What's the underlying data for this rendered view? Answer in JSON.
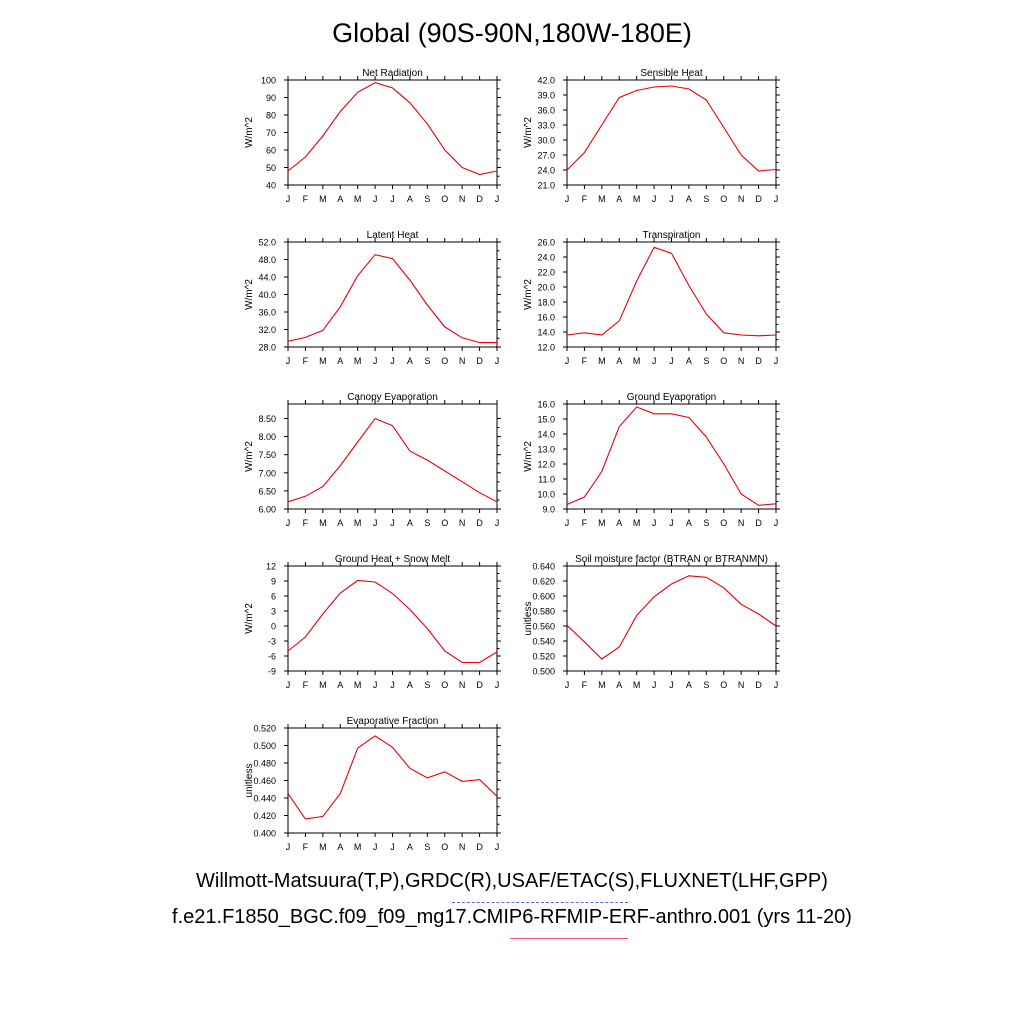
{
  "page": {
    "title": "Global (90S-90N,180W-180E)",
    "legend_line1": "Willmott-Matsuura(T,P),GRDC(R),USAF/ETAC(S),FLUXNET(LHF,GPP)",
    "legend_line2": "f.e21.F1850_BGC.f09_f09_mg17.CMIP6-RFMIP-ERF-anthro.001 (yrs 11-20)"
  },
  "colors": {
    "line": "#e8000b",
    "axis": "#000000"
  },
  "chart_data": [
    {
      "type": "line",
      "title": "Net Radiation",
      "ylabel": "W/m^2",
      "categories": [
        "J",
        "F",
        "M",
        "A",
        "M",
        "J",
        "J",
        "A",
        "S",
        "O",
        "N",
        "D",
        "J"
      ],
      "ylim": [
        40,
        100
      ],
      "yticks": [
        "40",
        "50",
        "60",
        "70",
        "80",
        "90",
        "100"
      ],
      "values": [
        48,
        56,
        68,
        82,
        93,
        98.5,
        95.5,
        87,
        75,
        60,
        50,
        46,
        48
      ]
    },
    {
      "type": "line",
      "title": "Sensible Heat",
      "ylabel": "W/m^2",
      "categories": [
        "J",
        "F",
        "M",
        "A",
        "M",
        "J",
        "J",
        "A",
        "S",
        "O",
        "N",
        "D",
        "J"
      ],
      "ylim": [
        21,
        42
      ],
      "yticks": [
        "21.0",
        "24.0",
        "27.0",
        "30.0",
        "33.0",
        "36.0",
        "39.0",
        "42.0"
      ],
      "values": [
        24.0,
        27.5,
        33,
        38.5,
        39.9,
        40.6,
        40.8,
        40.2,
        38.0,
        32.5,
        27.0,
        23.8,
        24.1
      ]
    },
    {
      "type": "line",
      "title": "Latent Heat",
      "ylabel": "W/m^2",
      "categories": [
        "J",
        "F",
        "M",
        "A",
        "M",
        "J",
        "J",
        "A",
        "S",
        "O",
        "N",
        "D",
        "J"
      ],
      "ylim": [
        28,
        52
      ],
      "yticks": [
        "28.0",
        "32.0",
        "36.0",
        "40.0",
        "44.0",
        "48.0",
        "52.0"
      ],
      "values": [
        29.3,
        30.2,
        31.8,
        37.2,
        44.3,
        49.1,
        48.2,
        43.3,
        37.6,
        32.6,
        30.1,
        29.0,
        29.0
      ]
    },
    {
      "type": "line",
      "title": "Transpiration",
      "ylabel": "W/m^2",
      "categories": [
        "J",
        "F",
        "M",
        "A",
        "M",
        "J",
        "J",
        "A",
        "S",
        "O",
        "N",
        "D",
        "J"
      ],
      "ylim": [
        12,
        26
      ],
      "yticks": [
        "12.0",
        "14.0",
        "16.0",
        "18.0",
        "20.0",
        "22.0",
        "24.0",
        "26.0"
      ],
      "values": [
        13.6,
        13.9,
        13.6,
        15.5,
        20.8,
        25.3,
        24.5,
        20.2,
        16.4,
        13.9,
        13.6,
        13.5,
        13.6
      ]
    },
    {
      "type": "line",
      "title": "Canopy Evaporation",
      "ylabel": "W/m^2",
      "categories": [
        "J",
        "F",
        "M",
        "A",
        "M",
        "J",
        "J",
        "A",
        "S",
        "O",
        "N",
        "D",
        "J"
      ],
      "ylim": [
        6,
        8.9
      ],
      "yticks": [
        "6.00",
        "6.50",
        "7.00",
        "7.50",
        "8.00",
        "8.50"
      ],
      "values": [
        6.2,
        6.35,
        6.62,
        7.2,
        7.85,
        8.5,
        8.3,
        7.6,
        7.35,
        7.05,
        6.75,
        6.45,
        6.2
      ]
    },
    {
      "type": "line",
      "title": "Ground Evaporation",
      "ylabel": "W/m^2",
      "categories": [
        "J",
        "F",
        "M",
        "A",
        "M",
        "J",
        "J",
        "A",
        "S",
        "O",
        "N",
        "D",
        "J"
      ],
      "ylim": [
        9,
        16
      ],
      "yticks": [
        "9.0",
        "10.0",
        "11.0",
        "12.0",
        "13.0",
        "14.0",
        "15.0",
        "16.0"
      ],
      "values": [
        9.3,
        9.8,
        11.5,
        14.5,
        15.8,
        15.35,
        15.35,
        15.1,
        13.8,
        12.0,
        10.0,
        9.25,
        9.35
      ]
    },
    {
      "type": "line",
      "title": "Ground Heat + Snow Melt",
      "ylabel": "W/m^2",
      "categories": [
        "J",
        "F",
        "M",
        "A",
        "M",
        "J",
        "J",
        "A",
        "S",
        "O",
        "N",
        "D",
        "J"
      ],
      "ylim": [
        -9,
        12
      ],
      "yticks": [
        "-9",
        "-6",
        "-3",
        "0",
        "3",
        "6",
        "9",
        "12"
      ],
      "values": [
        -5.0,
        -2.2,
        2.4,
        6.6,
        9.1,
        8.8,
        6.5,
        3.3,
        -0.5,
        -5.0,
        -7.3,
        -7.3,
        -5.2
      ]
    },
    {
      "type": "line",
      "title": "Soil moisture factor (BTRAN or BTRANMN)",
      "ylabel": "unitless",
      "categories": [
        "J",
        "F",
        "M",
        "A",
        "M",
        "J",
        "J",
        "A",
        "S",
        "O",
        "N",
        "D",
        "J"
      ],
      "ylim": [
        0.5,
        0.64
      ],
      "yticks": [
        "0.500",
        "0.520",
        "0.540",
        "0.560",
        "0.580",
        "0.600",
        "0.620",
        "0.640"
      ],
      "values": [
        0.561,
        0.539,
        0.516,
        0.532,
        0.574,
        0.599,
        0.616,
        0.627,
        0.625,
        0.611,
        0.589,
        0.576,
        0.56
      ]
    },
    {
      "type": "line",
      "title": "Evaporative Fraction",
      "ylabel": "unitless",
      "categories": [
        "J",
        "F",
        "M",
        "A",
        "M",
        "J",
        "J",
        "A",
        "S",
        "O",
        "N",
        "D",
        "J"
      ],
      "ylim": [
        0.4,
        0.52
      ],
      "yticks": [
        "0.400",
        "0.420",
        "0.440",
        "0.460",
        "0.480",
        "0.500",
        "0.520"
      ],
      "values": [
        0.445,
        0.416,
        0.419,
        0.445,
        0.497,
        0.511,
        0.498,
        0.474,
        0.463,
        0.47,
        0.459,
        0.461,
        0.442
      ]
    }
  ]
}
